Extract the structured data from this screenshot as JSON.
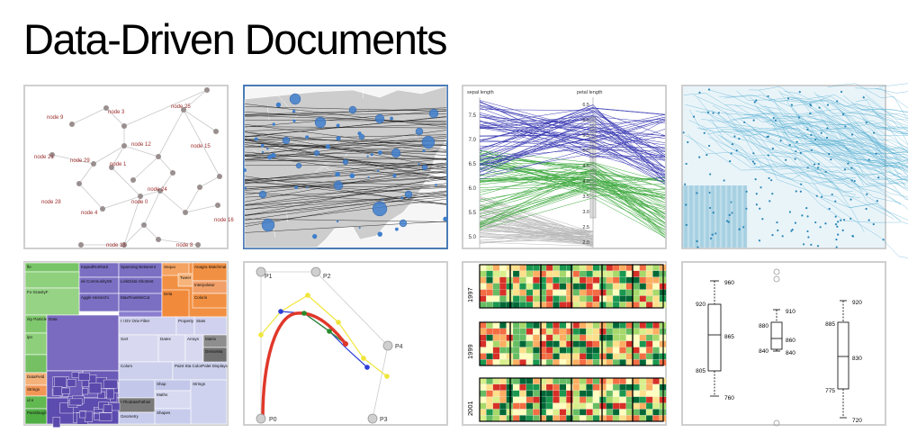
{
  "page": {
    "title": "Data-Driven Documents"
  },
  "force_graph": {
    "node_labels": [
      "node 9",
      "node 3",
      "node 25",
      "node 12",
      "node 15",
      "node 21",
      "node 29",
      "node 1",
      "node 24",
      "node 28",
      "node 0",
      "node 4",
      "node 13",
      "node 8",
      "node 16"
    ]
  },
  "parallel": {
    "axis1": "sepal length",
    "axis2": "petal length",
    "ticks1": [
      "7.5",
      "7.0",
      "6.5",
      "6.0",
      "5.5",
      "5.0"
    ],
    "ticks2": [
      "6.5",
      "6.0",
      "5.5",
      "5.0",
      "4.5",
      "4.0",
      "3.5",
      "3.0",
      "2.5",
      "2.0"
    ]
  },
  "treemap": {
    "cells": [
      "fle",
      "KapedRorRaUl",
      "Spanning Betweent",
      "ek CommunityStr",
      "LinkDista Shortest",
      "Aggle Heirarchi",
      "MaxFlowMinCut",
      "Fo GravityF",
      "rky Particle",
      "lpn",
      "Data",
      "DataField",
      "Strings",
      "ul e",
      "PanSlaugher",
      "Sequo",
      "Tweer",
      "Anagra Matchmal",
      "Interpolator",
      "Colorin",
      "Dela",
      "I I DV Orie Filter",
      "Property",
      "Stats",
      "Sort",
      "Dates",
      "Arrays",
      "Matrix",
      "DenseMa",
      "Colors",
      "Paint Sta ColorPalet Displays",
      "Shap",
      "I FllodataiPathiei",
      "Maths",
      "Strings",
      "Geometry",
      "Shapes",
      "Stats"
    ]
  },
  "bezier": {
    "labels": [
      "P1",
      "P2",
      "P0",
      "P3",
      "P4"
    ]
  },
  "heatmap": {
    "years": [
      "1997",
      "1999",
      "2001"
    ]
  },
  "boxplot": {
    "boxes": [
      {
        "labels": [
          "960",
          "920",
          "865",
          "805",
          "760"
        ]
      },
      {
        "labels": [
          "910",
          "880",
          "860",
          "840",
          "840"
        ]
      },
      {
        "labels": [
          "920",
          "885",
          "830",
          "775",
          "720"
        ]
      }
    ]
  }
}
